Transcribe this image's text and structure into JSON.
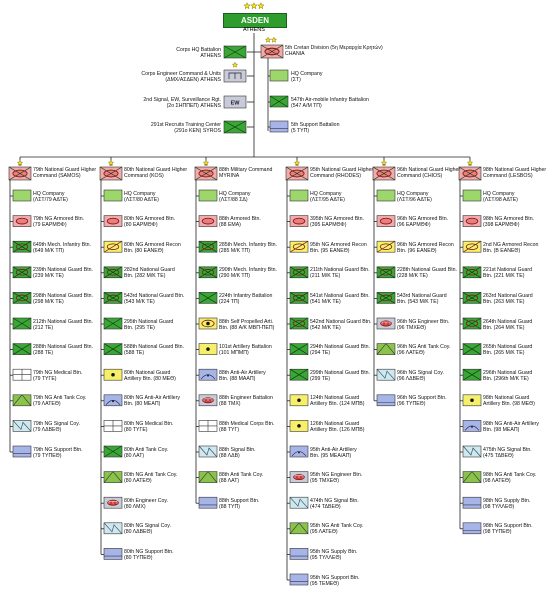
{
  "top": {
    "name": "ASDEN",
    "city": "ATHENS",
    "stars": 3
  },
  "colors": {
    "green": "#3aa636",
    "lime": "#9dd66b",
    "pink": "#f2aaaa",
    "lightgreen": "#8bc34a",
    "yellow": "#f5ef6a",
    "blue": "#a7b4e8",
    "white": "#ffffff",
    "lightblue": "#cfe8ef",
    "grey": "#c9cbd8",
    "red": "#d33b3b",
    "darkgreen": "#5e8f2f"
  },
  "left_units": [
    {
      "lines": [
        "Corps HQ Battalion",
        "ATHENS"
      ],
      "sym": "green"
    },
    {
      "lines": [
        "Corps Engineer Command & Units",
        "(ΔΜΧ/ΑΣΔΕΝ) ATHENS"
      ],
      "sym": "eng",
      "stars": 1
    },
    {
      "lines": [
        "2nd Signal, EW, Surveillance Rgt.",
        "(2ο ΣΗΠΠΕΠ) ATHENS"
      ],
      "sym": "ew",
      "text": "EW"
    },
    {
      "lines": [
        "291st Recruits Training Center",
        "(291ο ΚΕΝ) SYROS"
      ],
      "sym": "green"
    }
  ],
  "crete": {
    "lines": [
      "5th Cretan Division (5η Μεραρχία Κρητών)",
      "CHANIA"
    ],
    "stars": 2,
    "units": [
      {
        "lines": [
          "HQ Company",
          "(ΣΤ)"
        ],
        "sym": "lime"
      },
      {
        "lines": [
          "547th Air-mobile Infantry Battalion",
          "(547 Α/Μ ΤΠ)"
        ],
        "sym": "green"
      },
      {
        "lines": [
          "5th Support Battalion",
          "(5 ΤΥΠ)"
        ],
        "sym": "blue"
      }
    ]
  },
  "commands": [
    {
      "lines": [
        "79th National Guard Higher",
        "Command (SAMOS)"
      ],
      "sym": "pink",
      "units": [
        {
          "lines": [
            "HQ Company",
            "(ΛΣΤ/79 ΑΔΤΕ)"
          ],
          "sym": "lime"
        },
        {
          "lines": [
            "79th NG Armored Btn.",
            "(79 ΕΑΡΜΘΦ)"
          ],
          "sym": "pink"
        },
        {
          "lines": [
            "649th Mech. Infantry Btn.",
            "(649 Μ/Κ ΤΠ)"
          ],
          "sym": "mech"
        },
        {
          "lines": [
            "239th National Guard Btn.",
            "(239 Μ/Κ ΤΕ)"
          ],
          "sym": "mech"
        },
        {
          "lines": [
            "298th National Guard Btn.",
            "(298 Μ/Κ ΤΕ)"
          ],
          "sym": "mech"
        },
        {
          "lines": [
            "212th National Guard Btn.",
            "(212 ΤΕ)"
          ],
          "sym": "green"
        },
        {
          "lines": [
            "288th National Guard Btn.",
            "(288 ΤΕ)"
          ],
          "sym": "green"
        },
        {
          "lines": [
            "79th NG Medical Btn.",
            "(79 ΤΥΓΕ)"
          ],
          "sym": "white"
        },
        {
          "lines": [
            "79th NG Anti Tank Coy.",
            "(79 ΛΑΤΕΘ)"
          ],
          "sym": "lightgreen"
        },
        {
          "lines": [
            "79th NG Signal Coy.",
            "(79 ΛΔΒΕΘ)"
          ],
          "sym": "signal"
        },
        {
          "lines": [
            "79th NG Support Btn.",
            "(79 ΤΥΠΕΘ)"
          ],
          "sym": "blue"
        }
      ]
    },
    {
      "lines": [
        "80th National Guard Higher",
        "Command (KOS)"
      ],
      "sym": "pink",
      "units": [
        {
          "lines": [
            "HQ Company",
            "(ΛΣΤ/80 ΑΔΤΕ)"
          ],
          "sym": "lime"
        },
        {
          "lines": [
            "80th NG Armored Btn.",
            "(80 ΕΑΡΜΘΦ)"
          ],
          "sym": "pink"
        },
        {
          "lines": [
            "80th NG Armored Recon",
            "Btn. (80 ΕΑΝΕΘ)"
          ],
          "sym": "recon"
        },
        {
          "lines": [
            "282nd National Guard",
            "Btn. (282 Μ/Κ ΤΕ)"
          ],
          "sym": "mech"
        },
        {
          "lines": [
            "543rd National Guard Btn.",
            "(543 Μ/Κ ΤΕ)"
          ],
          "sym": "mech"
        },
        {
          "lines": [
            "295th National Guard",
            "Btn. (295 ΤΕ)"
          ],
          "sym": "green"
        },
        {
          "lines": [
            "588th National Guard Btn.",
            "(588 ΤΕ)"
          ],
          "sym": "green"
        },
        {
          "lines": [
            "80th National Guard",
            "Artillery Btn. (80 ΜΕΘ)"
          ],
          "sym": "yellow"
        },
        {
          "lines": [
            "80th NG Anti-Air Artillery",
            "Btn. (80 ΜΕΑΠ)"
          ],
          "sym": "aa"
        },
        {
          "lines": [
            "80th NG Medical Btn.",
            "(80 ΤΥΓΕ)"
          ],
          "sym": "white"
        },
        {
          "lines": [
            "80th Anti Tank Coy.",
            "(80 ΛΑΤ)"
          ],
          "sym": "green"
        },
        {
          "lines": [
            "80th NG Anti Tank Coy.",
            "(80 ΛΑΤΕΘ)"
          ],
          "sym": "lightgreen"
        },
        {
          "lines": [
            "80th Engineer Coy.",
            "(80 ΛΜΧ)"
          ],
          "sym": "engc"
        },
        {
          "lines": [
            "80th NG Signal Coy.",
            "(80 ΛΔΒΕΘ)"
          ],
          "sym": "signal"
        },
        {
          "lines": [
            "80th NG Support Btn.",
            "(80 ΤΥΠΕΘ)"
          ],
          "sym": "blue"
        }
      ]
    },
    {
      "lines": [
        "88th Military Command",
        "MYRINA"
      ],
      "sym": "pink",
      "units": [
        {
          "lines": [
            "HQ Company",
            "(ΛΣΤ/88 ΣΔ)"
          ],
          "sym": "lime"
        },
        {
          "lines": [
            "88th Armored Btn.",
            "(88 ΕΜΑ)"
          ],
          "sym": "pink"
        },
        {
          "lines": [
            "285th Mech. Infantry Btn.",
            "(285 Μ/Κ ΤΠ)"
          ],
          "sym": "mech"
        },
        {
          "lines": [
            "290th Mech. Infantry Btn.",
            "(290 Μ/Κ ΤΠ)"
          ],
          "sym": "mech"
        },
        {
          "lines": [
            "224th Infantry Battalion",
            "(224 ΤΠ)"
          ],
          "sym": "green"
        },
        {
          "lines": [
            "88th Self Propelled Arti.",
            "Btn. (88 Α/Κ ΜΒΠ-ΠΕΠ)"
          ],
          "sym": "sp"
        },
        {
          "lines": [
            "101st Artillery Battalion",
            "(101 ΜΠΜΠ)"
          ],
          "sym": "yellow"
        },
        {
          "lines": [
            "88th Anti-Air Artillery",
            "Btn. (88 ΜΑΑΠ)"
          ],
          "sym": "aa"
        },
        {
          "lines": [
            "88th Engineer Battalion",
            "(88 ΤΜΧ)"
          ],
          "sym": "engc"
        },
        {
          "lines": [
            "88th Medical Corps Btn.",
            "(88 ΤΥΓ)"
          ],
          "sym": "white"
        },
        {
          "lines": [
            "88th Signal Btn.",
            "(88 ΛΔΒ)"
          ],
          "sym": "signal"
        },
        {
          "lines": [
            "88th Anti Tank Coy.",
            "(88 ΛΑΤ)"
          ],
          "sym": "lightgreen"
        },
        {
          "lines": [
            "88th Support Btn.",
            "(88 ΤΥΠ)"
          ],
          "sym": "blue"
        }
      ]
    },
    {
      "lines": [
        "95th National Guard Higher",
        "Command (RHODES)"
      ],
      "sym": "pink",
      "units": [
        {
          "lines": [
            "HQ Company",
            "(ΛΣΤ/95 ΑΔΤΕ)"
          ],
          "sym": "lime"
        },
        {
          "lines": [
            "395th NG Armored Btn.",
            "(395 ΕΑΡΜΘΦ)"
          ],
          "sym": "pink"
        },
        {
          "lines": [
            "95th NG Armored Recon",
            "Btn. (95 ΕΑΝΕΘ)"
          ],
          "sym": "recon"
        },
        {
          "lines": [
            "211th National Guard Btn.",
            "(211 Μ/Κ ΤΕ)"
          ],
          "sym": "mech"
        },
        {
          "lines": [
            "541st National Guard Btn.",
            "(541 Μ/Κ ΤΕ)"
          ],
          "sym": "mech"
        },
        {
          "lines": [
            "542nd National Guard Btn.",
            "(542 Μ/Κ ΤΕ)"
          ],
          "sym": "mech"
        },
        {
          "lines": [
            "294th National Guard Btn.",
            "(294 ΤΕ)"
          ],
          "sym": "green"
        },
        {
          "lines": [
            "299th National Guard Btn.",
            "(299 ΤΕ)"
          ],
          "sym": "green"
        },
        {
          "lines": [
            "124th National Guard",
            "Artillery Btn. (124 ΜΠΒ)"
          ],
          "sym": "yellow"
        },
        {
          "lines": [
            "126th National Guard",
            "Artillery Btn. (126 ΜΠΒ)"
          ],
          "sym": "yellow"
        },
        {
          "lines": [
            "95th Anti-Air Artillery",
            "Btn. (95 ΜΕΑ/ΑΠ)"
          ],
          "sym": "aa"
        },
        {
          "lines": [
            "95th NG Engineer Btn.",
            "(95 ΤΜΧΕΘ)"
          ],
          "sym": "engc"
        },
        {
          "lines": [
            "474th NG Signal Btn.",
            "(474 ΤΔΒΕΘ)"
          ],
          "sym": "signal"
        },
        {
          "lines": [
            "95th NG Anti Tank Coy.",
            "(95 ΛΑΤΕΘ)"
          ],
          "sym": "lightgreen"
        },
        {
          "lines": [
            "95th NG Supply Btn.",
            "(95 ΤΥΛΛΕΘ)"
          ],
          "sym": "blue"
        },
        {
          "lines": [
            "95th NG Support Btn.",
            "(95 ΤΕΜΕΘ)"
          ],
          "sym": "blue"
        }
      ]
    },
    {
      "lines": [
        "96th National Guard Higher",
        "Command (CHIOS)"
      ],
      "sym": "pink",
      "units": [
        {
          "lines": [
            "HQ Company",
            "(ΛΣΤ/96 ΑΔΤΕ)"
          ],
          "sym": "lime"
        },
        {
          "lines": [
            "96th NG Armored Btn.",
            "(96 ΕΑΡΜΘΦ)"
          ],
          "sym": "pink"
        },
        {
          "lines": [
            "96th NG Armored Recon",
            "Btn. (96 ΕΑΝΕΘ)"
          ],
          "sym": "recon"
        },
        {
          "lines": [
            "228th National Guard Btn.",
            "(228 Μ/Κ ΤΕ)"
          ],
          "sym": "mech"
        },
        {
          "lines": [
            "543rd National Guard",
            "Btn. (543 Μ/Κ ΤΕ)"
          ],
          "sym": "mech"
        },
        {
          "lines": [
            "96th NG Engineer Btn.",
            "(96 ΤΜΧΕΘ)"
          ],
          "sym": "engc"
        },
        {
          "lines": [
            "96th NG Anti Tank Coy.",
            "(96 ΛΑΤΕΘ)"
          ],
          "sym": "lightgreen"
        },
        {
          "lines": [
            "96th NG Signal Coy.",
            "(96 ΛΔΒΕΘ)"
          ],
          "sym": "signal"
        },
        {
          "lines": [
            "96th NG Support Btn.",
            "(96 ΤΥΠΕΘ)"
          ],
          "sym": "blue"
        }
      ]
    },
    {
      "lines": [
        "98th National Guard Higher",
        "Command (LESBOS)"
      ],
      "sym": "pink",
      "units": [
        {
          "lines": [
            "HQ Company",
            "(ΛΣΤ/98 ΑΔΤΕ)"
          ],
          "sym": "lime"
        },
        {
          "lines": [
            "98th NG Armored Btn.",
            "(398 ΕΑΡΜΘΦ)"
          ],
          "sym": "pink"
        },
        {
          "lines": [
            "2nd NG Armored Recon",
            "Btn. (Β ΕΑΝΕΘ)"
          ],
          "sym": "recon"
        },
        {
          "lines": [
            "221st National Guard",
            "Btn. (221 Μ/Κ ΤΕ)"
          ],
          "sym": "mech"
        },
        {
          "lines": [
            "263rd National Guard",
            "Btn. (263 Μ/Κ ΤΕ)"
          ],
          "sym": "mech"
        },
        {
          "lines": [
            "264th National Guard",
            "Btn. (264 Μ/Κ ΤΕ)"
          ],
          "sym": "mech"
        },
        {
          "lines": [
            "265th National Guard",
            "Btn. (265 Μ/Κ ΤΕ)"
          ],
          "sym": "green"
        },
        {
          "lines": [
            "296th National Guard",
            "Btn. (296th Μ/Κ ΤΕ)"
          ],
          "sym": "green"
        },
        {
          "lines": [
            "98th National Guard",
            "Artillery Btn. (98 ΜΕΘ)"
          ],
          "sym": "yellow"
        },
        {
          "lines": [
            "98th NG Anti-Air Artillery",
            "Btn. (98 ΜΕΑΠ)"
          ],
          "sym": "aa"
        },
        {
          "lines": [
            "475th NG Signal Btn.",
            "(475 ΤΔΒΕΘ)"
          ],
          "sym": "signal"
        },
        {
          "lines": [
            "98th NG Anti Tank Coy.",
            "(98 ΛΑΤΕΘ)"
          ],
          "sym": "lightgreen"
        },
        {
          "lines": [
            "98th NG Supply Btn.",
            "(98 ΤΥΛΛΕΘ)"
          ],
          "sym": "blue"
        },
        {
          "lines": [
            "98th NG Support Btn.",
            "(98 ΤΥΠΕΘ)"
          ],
          "sym": "blue"
        }
      ]
    }
  ]
}
